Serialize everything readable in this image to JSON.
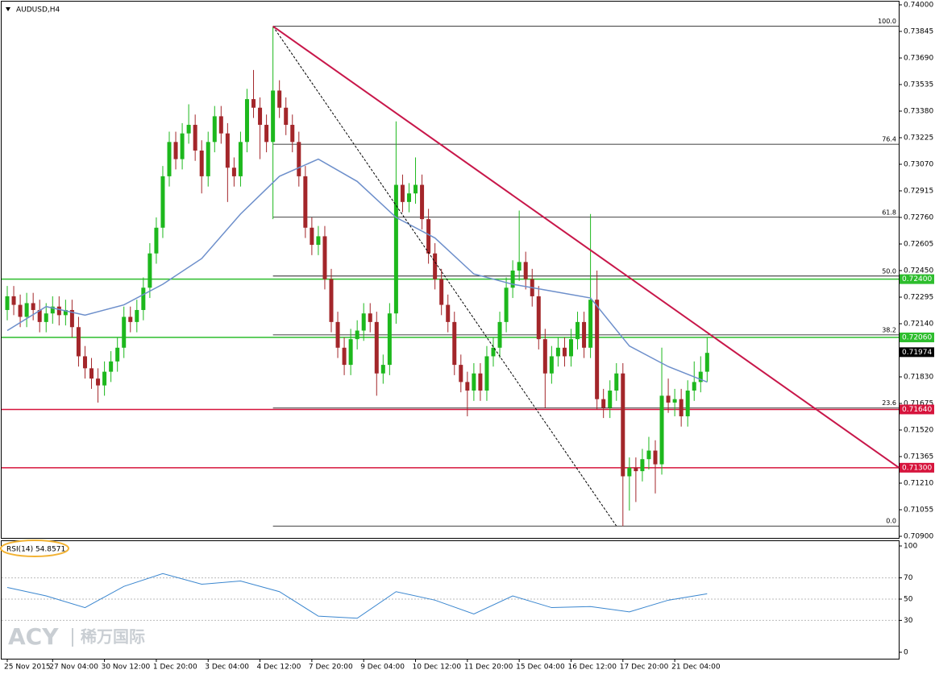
{
  "chart_data": [
    {
      "type": "candlestick",
      "title": "AUDUSD,H4",
      "categories": [
        "25 Nov 2015",
        null,
        null,
        null,
        null,
        null,
        null,
        "27 Nov 04:00",
        null,
        null,
        null,
        null,
        null,
        null,
        null,
        "30 Nov 12:00",
        null,
        null,
        null,
        null,
        null,
        null,
        null,
        "1 Dec 20:00",
        null,
        null,
        null,
        null,
        null,
        null,
        null,
        "3 Dec 04:00",
        null,
        null,
        null,
        null,
        null,
        null,
        null,
        "4 Dec 12:00",
        null,
        null,
        null,
        null,
        null,
        null,
        null,
        "7 Dec 20:00",
        null,
        null,
        null,
        null,
        null,
        null,
        null,
        "9 Dec 04:00",
        null,
        null,
        null,
        null,
        null,
        null,
        null,
        "10 Dec 12:00",
        null,
        null,
        null,
        null,
        null,
        null,
        null,
        "11 Dec 20:00",
        null,
        null,
        null,
        null,
        null,
        null,
        null,
        "15 Dec 04:00",
        null,
        null,
        null,
        null,
        null,
        null,
        null,
        "16 Dec 12:00",
        null,
        null,
        null,
        null,
        null,
        null,
        null,
        "17 Dec 20:00",
        null,
        null,
        null,
        null,
        null,
        null,
        null,
        "21 Dec 04:00",
        null,
        null,
        null,
        null,
        null
      ],
      "open": [
        0.7222,
        0.723,
        0.7225,
        0.7218,
        0.7226,
        0.7222,
        0.7215,
        0.722,
        0.7224,
        0.7219,
        0.7222,
        0.7212,
        0.7195,
        0.7188,
        0.7182,
        0.7178,
        0.7186,
        0.7192,
        0.72,
        0.7218,
        0.7215,
        0.7222,
        0.7235,
        0.7255,
        0.727,
        0.73,
        0.732,
        0.731,
        0.7325,
        0.733,
        0.7315,
        0.73,
        0.732,
        0.7335,
        0.7325,
        0.7305,
        0.73,
        0.732,
        0.7345,
        0.734,
        0.733,
        0.732,
        0.735,
        0.734,
        0.733,
        0.732,
        0.73,
        0.727,
        0.726,
        0.7265,
        0.724,
        0.7215,
        0.72,
        0.719,
        0.7205,
        0.721,
        0.722,
        0.7215,
        0.7185,
        0.719,
        0.722,
        0.7295,
        0.7285,
        0.729,
        0.7295,
        0.7275,
        0.7255,
        0.724,
        0.7225,
        0.7215,
        0.719,
        0.718,
        0.7175,
        0.7185,
        0.7175,
        0.7195,
        0.72,
        0.7215,
        0.7235,
        0.7245,
        0.725,
        0.724,
        0.723,
        0.7205,
        0.7185,
        0.7195,
        0.72,
        0.7195,
        0.7205,
        0.7215,
        0.72,
        0.7228,
        0.717,
        0.7165,
        0.7175,
        0.7185,
        0.7125,
        0.713,
        0.7128,
        0.7135,
        0.714,
        0.7132,
        0.7172,
        0.7168,
        0.717,
        0.716,
        0.7175,
        0.718,
        0.7186
      ],
      "high": [
        0.7236,
        0.7236,
        0.7231,
        0.7232,
        0.7232,
        0.7228,
        0.7226,
        0.723,
        0.723,
        0.7228,
        0.7228,
        0.7218,
        0.7201,
        0.7194,
        0.7188,
        0.7192,
        0.7198,
        0.7206,
        0.7224,
        0.7224,
        0.7228,
        0.7241,
        0.7261,
        0.7276,
        0.7306,
        0.7326,
        0.7326,
        0.7331,
        0.7342,
        0.7336,
        0.7321,
        0.7326,
        0.7341,
        0.7341,
        0.7331,
        0.7311,
        0.7326,
        0.7351,
        0.7362,
        0.7346,
        0.7336,
        0.7387,
        0.7356,
        0.7346,
        0.7336,
        0.7326,
        0.7306,
        0.7276,
        0.7271,
        0.7271,
        0.7246,
        0.7221,
        0.7206,
        0.7211,
        0.7216,
        0.7226,
        0.7226,
        0.7221,
        0.7196,
        0.7226,
        0.7332,
        0.7301,
        0.7296,
        0.7311,
        0.7301,
        0.7281,
        0.7261,
        0.7246,
        0.7231,
        0.7221,
        0.7196,
        0.7186,
        0.7191,
        0.7191,
        0.7201,
        0.7206,
        0.7221,
        0.7241,
        0.7251,
        0.728,
        0.7256,
        0.7246,
        0.7236,
        0.7211,
        0.7201,
        0.7206,
        0.7206,
        0.7211,
        0.7221,
        0.7221,
        0.7278,
        0.7245,
        0.7176,
        0.7181,
        0.7191,
        0.7191,
        0.7136,
        0.7136,
        0.7141,
        0.7148,
        0.7146,
        0.72,
        0.7182,
        0.7176,
        0.7176,
        0.7181,
        0.7192,
        0.7195,
        0.7206
      ],
      "low": [
        0.7216,
        0.7219,
        0.7212,
        0.7212,
        0.7216,
        0.7209,
        0.7209,
        0.7214,
        0.7213,
        0.7213,
        0.7206,
        0.7189,
        0.7182,
        0.7176,
        0.7168,
        0.7172,
        0.718,
        0.7186,
        0.7194,
        0.7209,
        0.7209,
        0.7216,
        0.7229,
        0.7249,
        0.7264,
        0.7294,
        0.7304,
        0.7304,
        0.7319,
        0.7309,
        0.729,
        0.7294,
        0.7314,
        0.7319,
        0.7285,
        0.7294,
        0.7294,
        0.7314,
        0.7334,
        0.731,
        0.7314,
        0.7275,
        0.7334,
        0.7324,
        0.7314,
        0.7294,
        0.7264,
        0.7254,
        0.7254,
        0.7234,
        0.7209,
        0.7194,
        0.7184,
        0.7184,
        0.7199,
        0.7204,
        0.7209,
        0.7172,
        0.7179,
        0.7184,
        0.7214,
        0.7279,
        0.7279,
        0.7284,
        0.7269,
        0.7249,
        0.7234,
        0.7219,
        0.7209,
        0.7184,
        0.7174,
        0.716,
        0.7169,
        0.7169,
        0.7169,
        0.7189,
        0.7194,
        0.7209,
        0.7229,
        0.7239,
        0.7234,
        0.7224,
        0.7199,
        0.7165,
        0.7179,
        0.7189,
        0.7189,
        0.7189,
        0.7199,
        0.7194,
        0.7194,
        0.7164,
        0.7159,
        0.7159,
        0.7169,
        0.7096,
        0.7105,
        0.711,
        0.7122,
        0.7129,
        0.7115,
        0.7126,
        0.7162,
        0.716,
        0.7154,
        0.7154,
        0.7169,
        0.7174,
        0.718
      ],
      "close": [
        0.723,
        0.7225,
        0.7218,
        0.7226,
        0.7222,
        0.7215,
        0.722,
        0.7224,
        0.7219,
        0.7222,
        0.7212,
        0.7195,
        0.7188,
        0.7182,
        0.7178,
        0.7186,
        0.7192,
        0.72,
        0.7218,
        0.7215,
        0.7222,
        0.7235,
        0.7255,
        0.727,
        0.73,
        0.732,
        0.731,
        0.7325,
        0.733,
        0.7315,
        0.73,
        0.732,
        0.7335,
        0.7325,
        0.7305,
        0.73,
        0.732,
        0.7345,
        0.734,
        0.733,
        0.732,
        0.735,
        0.734,
        0.733,
        0.732,
        0.73,
        0.727,
        0.726,
        0.7265,
        0.724,
        0.7215,
        0.72,
        0.719,
        0.7205,
        0.721,
        0.722,
        0.7215,
        0.7185,
        0.719,
        0.722,
        0.7295,
        0.7285,
        0.729,
        0.7295,
        0.7275,
        0.7255,
        0.724,
        0.7225,
        0.7215,
        0.719,
        0.718,
        0.7175,
        0.7185,
        0.7175,
        0.7195,
        0.72,
        0.7215,
        0.7235,
        0.7245,
        0.725,
        0.724,
        0.723,
        0.7205,
        0.7185,
        0.7195,
        0.72,
        0.7195,
        0.7205,
        0.7215,
        0.72,
        0.7228,
        0.717,
        0.7165,
        0.7175,
        0.7185,
        0.7125,
        0.713,
        0.7128,
        0.7135,
        0.714,
        0.7132,
        0.7172,
        0.7168,
        0.717,
        0.716,
        0.7175,
        0.718,
        0.7186,
        0.7197
      ],
      "up_color": "#1db81d",
      "down_color": "#a3262a",
      "ylim": [
        0.709,
        0.74
      ],
      "yticks": [
        {
          "value": 0.74,
          "label": "0.74000"
        },
        {
          "value": 0.73845,
          "label": "0.73845"
        },
        {
          "value": 0.7369,
          "label": "0.73690"
        },
        {
          "value": 0.73535,
          "label": "0.73535"
        },
        {
          "value": 0.7338,
          "label": "0.73380"
        },
        {
          "value": 0.73225,
          "label": "0.73225"
        },
        {
          "value": 0.7307,
          "label": "0.73070"
        },
        {
          "value": 0.72915,
          "label": "0.72915"
        },
        {
          "value": 0.7276,
          "label": "0.72760"
        },
        {
          "value": 0.72605,
          "label": "0.72605"
        },
        {
          "value": 0.7245,
          "label": "0.72450"
        },
        {
          "value": 0.72295,
          "label": "0.72295"
        },
        {
          "value": 0.7214,
          "label": "0.72140"
        },
        {
          "value": 0.7183,
          "label": "0.71830"
        },
        {
          "value": 0.71675,
          "label": "0.71675"
        },
        {
          "value": 0.7152,
          "label": "0.71520"
        },
        {
          "value": 0.71365,
          "label": "0.71365"
        },
        {
          "value": 0.7121,
          "label": "0.71210"
        },
        {
          "value": 0.71055,
          "label": "0.71055"
        },
        {
          "value": 0.709,
          "label": "0.70900"
        }
      ],
      "ma": {
        "color": "#6d8fcb",
        "x": [
          0,
          6,
          12,
          18,
          24,
          30,
          36,
          42,
          48,
          54,
          60,
          66,
          72,
          78,
          84,
          90,
          96,
          102,
          108
        ],
        "values": [
          0.721,
          0.7224,
          0.7219,
          0.7225,
          0.7237,
          0.7252,
          0.7278,
          0.73,
          0.731,
          0.7297,
          0.7276,
          0.7264,
          0.7243,
          0.7237,
          0.7233,
          0.7229,
          0.7201,
          0.7189,
          0.718
        ]
      },
      "levels": [
        {
          "value": 0.724,
          "label": "0.72400",
          "color": "#2dbd2d"
        },
        {
          "value": 0.7206,
          "label": "0.72060",
          "color": "#2dbd2d"
        },
        {
          "value": 0.7164,
          "label": "0.71640",
          "color": "#d6143c"
        },
        {
          "value": 0.713,
          "label": "0.71300",
          "color": "#d6143c"
        }
      ],
      "last_price": {
        "value": 0.71974,
        "label": "0.71974"
      },
      "fib": {
        "start": 41,
        "levels": [
          {
            "value": 100,
            "label": "100.0",
            "price": 0.73875
          },
          {
            "value": 76.4,
            "label": "76.4",
            "price": 0.73187
          },
          {
            "value": 61.8,
            "label": "61.8",
            "price": 0.72761
          },
          {
            "value": 50,
            "label": "50.0",
            "price": 0.72418
          },
          {
            "value": 38.2,
            "label": "38.2",
            "price": 0.72075
          },
          {
            "value": 23.6,
            "label": "23.6",
            "price": 0.71648
          },
          {
            "value": 0,
            "label": "0.0",
            "price": 0.7096
          }
        ]
      },
      "trendline": {
        "color": "#c8174a",
        "x": [
          41,
          137.6
        ],
        "y": [
          0.73875,
          0.713
        ]
      },
      "fib_line": {
        "x": [
          41,
          94
        ],
        "y": [
          0.73875,
          0.7096
        ]
      }
    },
    {
      "type": "line",
      "title": "RSI(14) 54.8571",
      "color": "#3a86cf",
      "x": [
        0,
        6,
        12,
        18,
        24,
        30,
        36,
        42,
        48,
        54,
        60,
        66,
        72,
        78,
        84,
        90,
        96,
        102,
        108
      ],
      "values": [
        61,
        53,
        42,
        62,
        74,
        64,
        67,
        57,
        34,
        32,
        57,
        49,
        36,
        53,
        42,
        43,
        38,
        49,
        55
      ],
      "ylim": [
        0,
        100
      ],
      "yticks": [
        100,
        70,
        50,
        30,
        0
      ]
    }
  ],
  "watermark": {
    "brand": "ACY",
    "name": "稀万国际"
  }
}
